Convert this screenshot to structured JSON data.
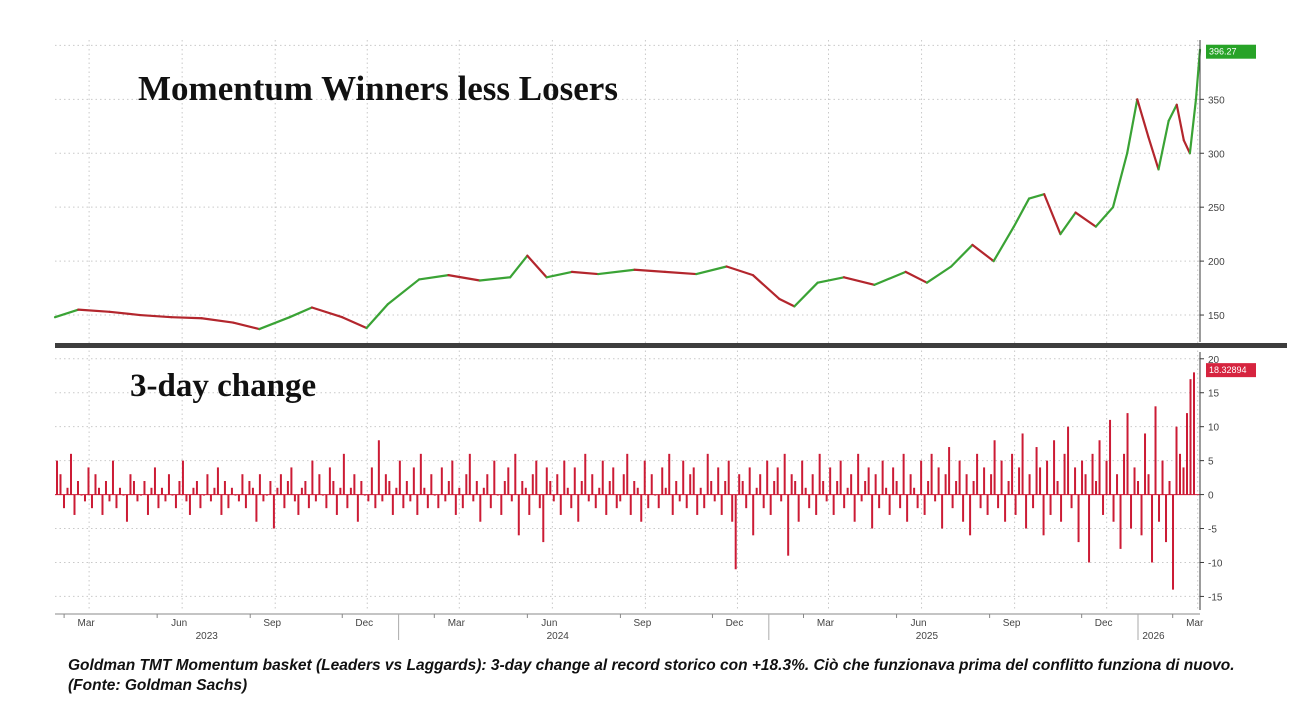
{
  "chart_data": [
    {
      "type": "line",
      "title": "Momentum Winners less Losers",
      "ylim": [
        125,
        405
      ],
      "yticks": [
        150,
        200,
        250,
        300,
        350
      ],
      "last_value_label": "396.27",
      "grid": true,
      "colors": {
        "up": "#3aa335",
        "down": "#b3262d",
        "badge": "#27a327"
      },
      "x": [
        "2023-02-20",
        "2023-03-15",
        "2023-04-15",
        "2023-05-15",
        "2023-06-15",
        "2023-07-15",
        "2023-08-15",
        "2023-09-10",
        "2023-10-10",
        "2023-11-01",
        "2023-12-01",
        "2023-12-25",
        "2024-01-15",
        "2024-02-15",
        "2024-03-15",
        "2024-04-15",
        "2024-05-15",
        "2024-06-01",
        "2024-06-20",
        "2024-07-15",
        "2024-08-10",
        "2024-09-15",
        "2024-10-15",
        "2024-11-15",
        "2024-12-15",
        "2025-01-10",
        "2025-02-05",
        "2025-02-20",
        "2025-03-15",
        "2025-04-10",
        "2025-05-10",
        "2025-06-10",
        "2025-07-01",
        "2025-07-25",
        "2025-08-15",
        "2025-09-05",
        "2025-09-25",
        "2025-10-10",
        "2025-10-25",
        "2025-11-10",
        "2025-11-25",
        "2025-12-15",
        "2026-01-01",
        "2026-01-15",
        "2026-01-25",
        "2026-02-05",
        "2026-02-15",
        "2026-02-25",
        "2026-03-05",
        "2026-03-12",
        "2026-03-18",
        "2026-03-24",
        "2026-03-28"
      ],
      "y": [
        148,
        155,
        153,
        150,
        148,
        147,
        143,
        137,
        148,
        157,
        148,
        138,
        160,
        183,
        187,
        182,
        185,
        205,
        185,
        190,
        188,
        192,
        190,
        188,
        195,
        187,
        165,
        158,
        180,
        185,
        178,
        190,
        180,
        195,
        215,
        200,
        232,
        258,
        262,
        225,
        245,
        232,
        250,
        300,
        350,
        315,
        285,
        330,
        345,
        312,
        300,
        350,
        396
      ]
    },
    {
      "type": "bar",
      "title": "3-day change",
      "ylim": [
        -17,
        21
      ],
      "yticks": [
        20,
        15,
        10,
        5,
        0,
        -5,
        -10,
        -15
      ],
      "last_value_label": "18.32894",
      "grid": true,
      "colors": {
        "bar": "#cc1b35",
        "badge": "#d6243f"
      },
      "x_range": [
        "2023-02-20",
        "2026-03-28"
      ],
      "values": [
        5,
        3,
        -2,
        1,
        6,
        -3,
        2,
        0,
        -1,
        4,
        -2,
        3,
        1,
        -3,
        2,
        -1,
        5,
        -2,
        1,
        0,
        -4,
        3,
        2,
        -1,
        0,
        2,
        -3,
        1,
        4,
        -2,
        1,
        -1,
        3,
        0,
        -2,
        2,
        5,
        -1,
        -3,
        1,
        2,
        -2,
        0,
        3,
        -1,
        1,
        4,
        -3,
        2,
        -2,
        1,
        0,
        -1,
        3,
        -2,
        2,
        1,
        -4,
        3,
        -1,
        0,
        2,
        -5,
        1,
        3,
        -2,
        2,
        4,
        -1,
        -3,
        1,
        2,
        -2,
        5,
        -1,
        3,
        0,
        -2,
        4,
        2,
        -3,
        1,
        6,
        -2,
        1,
        3,
        -4,
        2,
        0,
        -1,
        4,
        -2,
        8,
        -1,
        3,
        2,
        -3,
        1,
        5,
        -2,
        2,
        -1,
        4,
        -3,
        6,
        1,
        -2,
        3,
        0,
        -2,
        4,
        -1,
        2,
        5,
        -3,
        1,
        -2,
        3,
        6,
        -1,
        2,
        -4,
        1,
        3,
        -2,
        5,
        0,
        -3,
        2,
        4,
        -1,
        6,
        -6,
        2,
        1,
        -3,
        3,
        5,
        -2,
        -7,
        4,
        2,
        -1,
        3,
        -3,
        5,
        1,
        -2,
        4,
        -4,
        2,
        6,
        -1,
        3,
        -2,
        1,
        5,
        -3,
        2,
        4,
        -2,
        -1,
        3,
        6,
        -3,
        2,
        1,
        -4,
        5,
        -2,
        3,
        0,
        -2,
        4,
        1,
        6,
        -3,
        2,
        -1,
        5,
        -2,
        3,
        4,
        -3,
        1,
        -2,
        6,
        2,
        -1,
        4,
        -3,
        2,
        5,
        -4,
        -11,
        3,
        2,
        -2,
        4,
        -6,
        1,
        3,
        -2,
        5,
        -3,
        2,
        4,
        -1,
        6,
        -9,
        3,
        2,
        -4,
        5,
        1,
        -2,
        3,
        -3,
        6,
        2,
        -1,
        4,
        -3,
        2,
        5,
        -2,
        1,
        3,
        -4,
        6,
        -1,
        2,
        4,
        -5,
        3,
        -2,
        5,
        1,
        -3,
        4,
        2,
        -2,
        6,
        -4,
        3,
        1,
        -2,
        5,
        -3,
        2,
        6,
        -1,
        4,
        -5,
        3,
        7,
        -2,
        2,
        5,
        -4,
        3,
        -6,
        2,
        6,
        -2,
        4,
        -3,
        3,
        8,
        -2,
        5,
        -4,
        2,
        6,
        -3,
        4,
        9,
        -5,
        3,
        -2,
        7,
        4,
        -6,
        5,
        -3,
        8,
        2,
        -4,
        6,
        10,
        -2,
        4,
        -7,
        5,
        3,
        -10,
        6,
        2,
        8,
        -3,
        5,
        11,
        -4,
        3,
        -8,
        6,
        12,
        -5,
        4,
        2,
        -6,
        9,
        3,
        -10,
        13,
        -4,
        5,
        -7,
        2,
        -14,
        10,
        6,
        4,
        12,
        17,
        18
      ]
    }
  ],
  "x_axis": {
    "months": [
      "Mar",
      "Jun",
      "Sep",
      "Dec",
      "Mar",
      "Jun",
      "Sep",
      "Dec",
      "Mar",
      "Jun",
      "Sep",
      "Dec",
      "Mar"
    ],
    "years": [
      "2023",
      "2024",
      "2025",
      "2026"
    ]
  },
  "caption": "Goldman TMT Momentum basket (Leaders vs Laggards): 3-day change al record storico con +18.3%. Ciò che funzionava prima del conflitto funziona di nuovo. (Fonte: Goldman Sachs)"
}
